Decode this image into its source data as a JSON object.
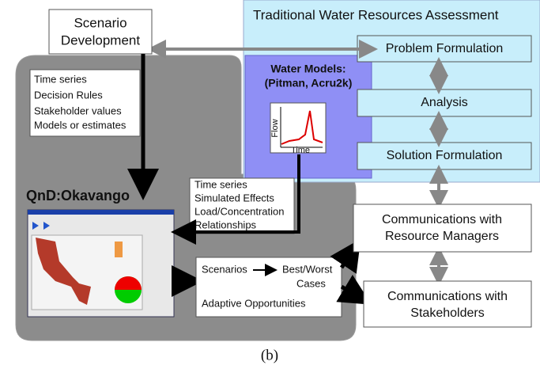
{
  "scenario_box": {
    "lines": [
      "Scenario",
      "Development"
    ]
  },
  "assessment": {
    "title": "Traditional Water Resources Assessment",
    "steps": [
      "Problem Formulation",
      "Analysis",
      "Solution Formulation"
    ]
  },
  "water_models": {
    "lines": [
      "Water Models:",
      "(Pitman, Acru2k)"
    ],
    "graph_y": "Flow",
    "graph_x": "Time"
  },
  "inputs_box": {
    "lines": [
      "Time series",
      "Decision Rules",
      "Stakeholder values",
      "Models or estimates"
    ]
  },
  "tool_title": "QnD:Okavango",
  "outputs_box": {
    "lines": [
      "Time series",
      "Simulated Effects",
      "Load/Concentration",
      "Relationships"
    ]
  },
  "results_box": {
    "scenarios": "Scenarios",
    "best_worst": [
      "Best/Worst",
      "Cases"
    ],
    "adaptive": "Adaptive Opportunities"
  },
  "communications": [
    [
      "Communications with",
      "Resource Managers"
    ],
    [
      "Communications with",
      "Stakeholders"
    ]
  ],
  "caption": "(b)"
}
